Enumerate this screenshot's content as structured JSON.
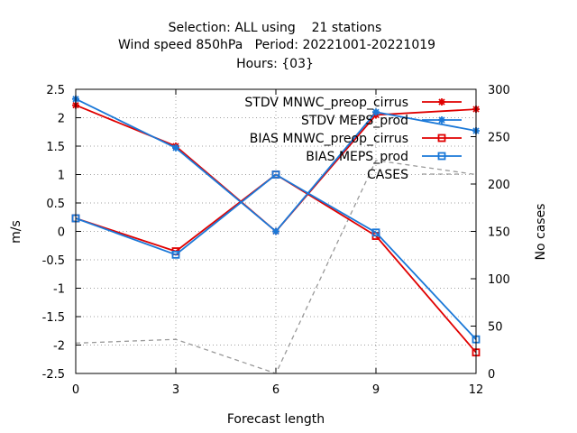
{
  "chart_data": {
    "type": "line",
    "title_lines": [
      "Selection: ALL using    21 stations",
      "Wind speed 850hPa   Period: 20221001-20221019",
      "Hours: {03}"
    ],
    "xlabel": "Forecast length",
    "ylabel": "m/s",
    "y2label": "No cases",
    "x": [
      0,
      3,
      6,
      9,
      12
    ],
    "x_ticks": [
      "0",
      "3",
      "6",
      "9",
      "12"
    ],
    "xlim": [
      0,
      12
    ],
    "ylim": [
      -2.5,
      2.5
    ],
    "y_ticks": [
      "2.5",
      "2",
      "1.5",
      "1",
      "0.5",
      "0",
      "-0.5",
      "-1",
      "-1.5",
      "-2",
      "-2.5"
    ],
    "y2lim": [
      0,
      300
    ],
    "y2_ticks": [
      "300",
      "250",
      "200",
      "150",
      "100",
      "50",
      "0"
    ],
    "grid": true,
    "legend_position": "top-right",
    "series": [
      {
        "name": "STDV MNWC_preop_cirrus",
        "axis": "y",
        "color": "#e00000",
        "marker": "star",
        "dash": false,
        "values": [
          2.22,
          1.5,
          0.0,
          2.05,
          2.15
        ]
      },
      {
        "name": "STDV MEPS_prod",
        "axis": "y",
        "color": "#1a78d8",
        "marker": "star",
        "dash": false,
        "values": [
          2.33,
          1.47,
          0.0,
          2.1,
          1.77
        ]
      },
      {
        "name": "BIAS MNWC_preop_cirrus",
        "axis": "y",
        "color": "#e00000",
        "marker": "square",
        "dash": false,
        "values": [
          0.23,
          -0.35,
          1.0,
          -0.08,
          -2.13
        ]
      },
      {
        "name": "BIAS MEPS_prod",
        "axis": "y",
        "color": "#1a78d8",
        "marker": "square",
        "dash": false,
        "values": [
          0.23,
          -0.41,
          1.0,
          -0.02,
          -1.9
        ]
      },
      {
        "name": "CASES",
        "axis": "y2",
        "color": "#999999",
        "marker": "none",
        "dash": true,
        "values": [
          32,
          36,
          0,
          225,
          210
        ]
      }
    ]
  }
}
